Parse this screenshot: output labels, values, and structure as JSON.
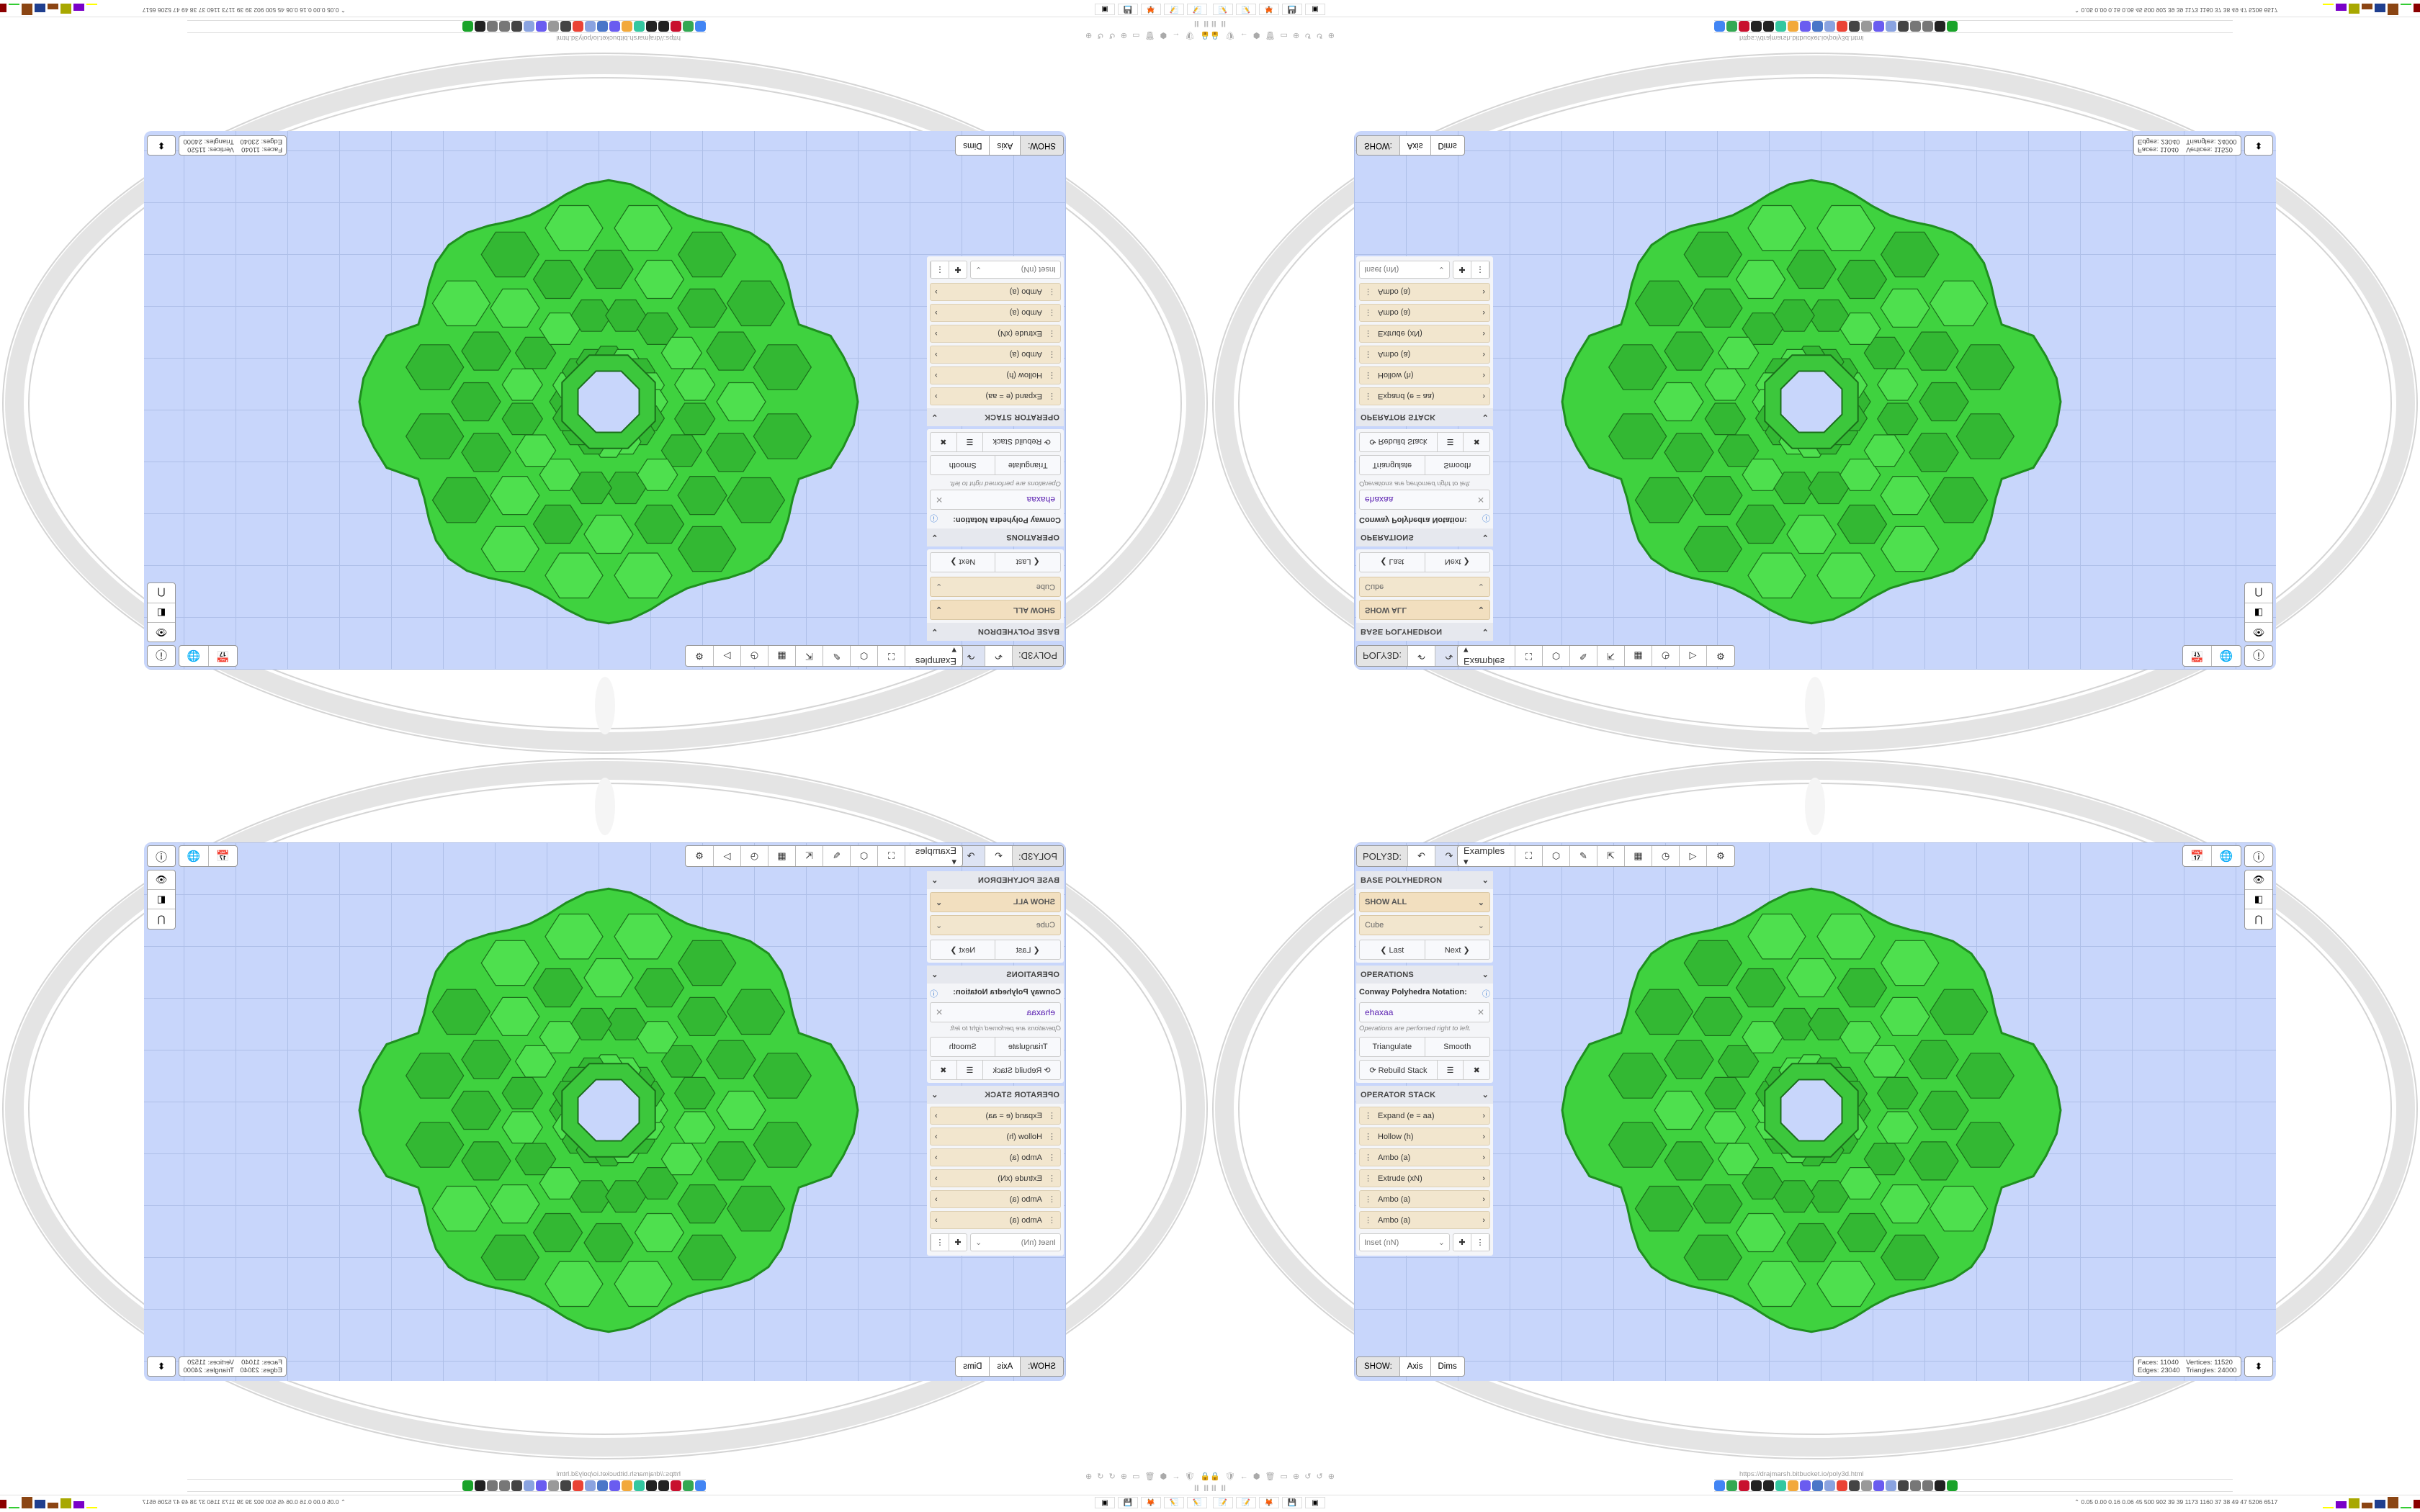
{
  "browser": {
    "url": "https://drajmarsh.bitbucket.io/poly3d.html",
    "bookmark_icons": [
      "google",
      "google",
      "flower",
      "wikipedia",
      "wikipedia",
      "cc",
      "cheese",
      "chat",
      "vk",
      "globe",
      "google",
      "avatar",
      "robot",
      "bin",
      "globe",
      "avatar",
      "bird",
      "bird",
      "wikipedia",
      "chart"
    ],
    "bookmark_colors": [
      "#4285f4",
      "#34a853",
      "#c8102e",
      "#222222",
      "#222222",
      "#33c7a0",
      "#f2a93b",
      "#6a5cf0",
      "#4a76c8",
      "#8aa3e0",
      "#ea4335",
      "#444444",
      "#999999",
      "#6a5cf0",
      "#8aa3e0",
      "#444444",
      "#777777",
      "#777777",
      "#222222",
      "#1aa32a"
    ]
  },
  "taskbar": {
    "apps": [
      "notepad-icon",
      "notepad-icon",
      "firefox-icon",
      "floppy-icon",
      "terminal-icon"
    ],
    "app_glyphs": [
      "📝",
      "📝",
      "🦊",
      "💾",
      "▣"
    ],
    "stats_numbers": "⌃  0.05 0.00 0.16 0.06  45  500  902  39  39  1173 1160  37  38  49  47  5206 6517",
    "graph_colors": [
      "#ffff00",
      "#7a00c8",
      "#a8a800",
      "#8b4513",
      "#1f3f8f",
      "#8b4513",
      "#33cc33",
      "#8b0000"
    ],
    "pause": "II  II"
  },
  "toolbar": {
    "app_label": "POLY3D:",
    "undo": "↶",
    "redo": "↷",
    "examples": "Examples ▾",
    "tools": [
      {
        "name": "paint-bucket-icon",
        "glyph": "⛶"
      },
      {
        "name": "cube-play-icon",
        "glyph": "⬡"
      },
      {
        "name": "edit-lines-icon",
        "glyph": "✎"
      },
      {
        "name": "export-icon",
        "glyph": "⇱"
      },
      {
        "name": "table-icon",
        "glyph": "▦"
      },
      {
        "name": "clock-icon",
        "glyph": "◷"
      },
      {
        "name": "play-icon",
        "glyph": "▷"
      },
      {
        "name": "settings-icon",
        "glyph": "⚙"
      }
    ],
    "right": [
      {
        "name": "calendar-clock-icon",
        "glyph": "📅"
      },
      {
        "name": "globe-icon",
        "glyph": "🌐"
      }
    ],
    "info": "ⓘ",
    "view_buttons": [
      {
        "name": "eye-icon",
        "glyph": "👁"
      },
      {
        "name": "panel-toggle-icon",
        "glyph": "◧"
      },
      {
        "name": "magnet-icon",
        "glyph": "⋂"
      }
    ]
  },
  "panel": {
    "base": {
      "header": "BASE POLYHEDRON",
      "filter": "SHOW ALL",
      "shape": "Cube",
      "last": "❮ Last",
      "next": "Next ❯"
    },
    "operations": {
      "header": "OPERATIONS",
      "notation_label": "Conway Polyhedra Notation:",
      "notation_value": "ehaxaa",
      "clear": "✕",
      "note": "Operations are perfomed right to left.",
      "triangulate": "Triangulate",
      "smooth": "Smooth",
      "rebuild": "⟳ Rebuild Stack",
      "list": "☰",
      "delete": "✖"
    },
    "stack": {
      "header": "OPERATOR STACK",
      "items": [
        "Expand (e = aa)",
        "Hollow (h)",
        "Ambo (a)",
        "Extrude (xN)",
        "Ambo (a)",
        "Ambo (a)"
      ],
      "add_select": "Inset (nN)",
      "add": "✚",
      "more": "⋮"
    }
  },
  "show_bar": {
    "label": "SHOW:",
    "axis": "Axis",
    "dims": "Dims"
  },
  "stats": {
    "faces_label": "Faces:",
    "faces": "11040",
    "vertices_label": "Vertices:",
    "vertices": "11520",
    "edges_label": "Edges:",
    "edges": "23040",
    "triangles_label": "Triangles:",
    "triangles": "24000"
  },
  "colors": {
    "mesh": "#3fd23f",
    "mesh_dark": "#1f8f1f",
    "viewport": "#c8d6fb",
    "stack_item": "#f2e6ce"
  }
}
